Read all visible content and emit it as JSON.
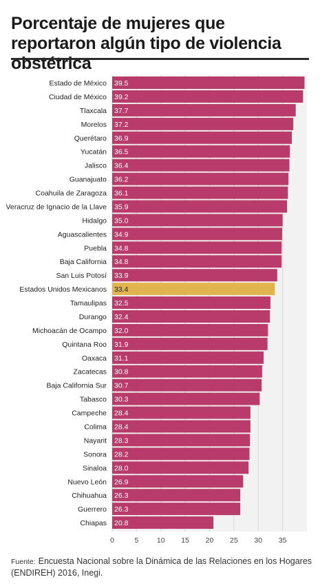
{
  "title": "Porcentaje de mujeres que reportaron algún tipo de violencia obstétrica",
  "source": {
    "label": "Fuente:",
    "text": "Encuesta Nacional sobre la Dinámica de las Relaciones en los Hogares (ENDIREH) 2016, Inegi."
  },
  "colors": {
    "bar": "#b83b6b",
    "highlight": "#e2b44f",
    "value_text_on_bar": "#ffffff",
    "value_text_on_highlight": "#222222"
  },
  "chart_data": {
    "type": "bar",
    "orientation": "horizontal",
    "title": "Porcentaje de mujeres que reportaron algún tipo de violencia obstétrica",
    "xlabel": "",
    "ylabel": "",
    "xlim": [
      0,
      40
    ],
    "xticks": [
      0,
      5,
      10,
      15,
      20,
      25,
      30,
      35
    ],
    "grid": true,
    "highlighted_category": "Estados Unidos Mexicanos",
    "categories": [
      "Estado de México",
      "Ciudad de México",
      "Tlaxcala",
      "Morelos",
      "Querétaro",
      "Yucatán",
      "Jalisco",
      "Guanajuato",
      "Coahuila de Zaragoza",
      "Veracruz de Ignacio de la Llave",
      "Hidalgo",
      "Aguascalientes",
      "Puebla",
      "Baja California",
      "San Luis Potosí",
      "Estados Unidos Mexicanos",
      "Tamaulipas",
      "Durango",
      "Michoacán de Ocampo",
      "Quintana Roo",
      "Oaxaca",
      "Zacatecas",
      "Baja California Sur",
      "Tabasco",
      "Campeche",
      "Colima",
      "Nayarit",
      "Sonora",
      "Sinaloa",
      "Nuevo León",
      "Chihuahua",
      "Guerrero",
      "Chiapas"
    ],
    "values": [
      39.5,
      39.2,
      37.7,
      37.2,
      36.9,
      36.5,
      36.4,
      36.2,
      36.1,
      35.9,
      35.0,
      34.9,
      34.8,
      34.8,
      33.9,
      33.4,
      32.5,
      32.4,
      32.0,
      31.9,
      31.1,
      30.8,
      30.7,
      30.3,
      28.4,
      28.4,
      28.3,
      28.2,
      28.0,
      26.9,
      26.3,
      26.3,
      20.8
    ],
    "value_labels": [
      "39.5",
      "39.2",
      "37.7",
      "37.2",
      "36.9",
      "36.5",
      "36.4",
      "36.2",
      "36.1",
      "35.9",
      "35.0",
      "34.9",
      "34.8",
      "34.8",
      "33.9",
      "33.4",
      "32.5",
      "32.4",
      "32.0",
      "31.9",
      "31.1",
      "30.8",
      "30.7",
      "30.3",
      "28.4",
      "28.4",
      "28.3",
      "28.2",
      "28.0",
      "26.9",
      "26.3",
      "26.3",
      "20.8"
    ]
  }
}
